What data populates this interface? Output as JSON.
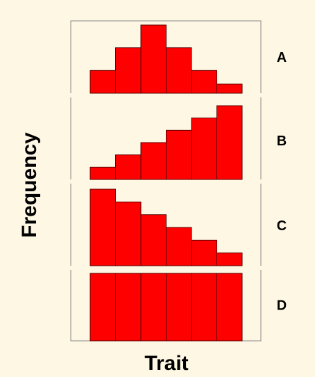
{
  "chart_data": {
    "type": "bar",
    "xlabel": "Trait",
    "ylabel": "Frequency",
    "bar_color": "#ff0000",
    "edge_color": "#5a0000",
    "background": "#fdf7e3",
    "panels": [
      {
        "label": "A",
        "values": [
          1,
          2,
          3,
          2,
          1,
          0.4
        ]
      },
      {
        "label": "B",
        "values": [
          1,
          2,
          3,
          4,
          5,
          6
        ]
      },
      {
        "label": "C",
        "values": [
          6,
          5,
          4,
          3,
          2,
          1
        ]
      },
      {
        "label": "D",
        "values": [
          1,
          1,
          1,
          1,
          1,
          1
        ]
      }
    ]
  }
}
